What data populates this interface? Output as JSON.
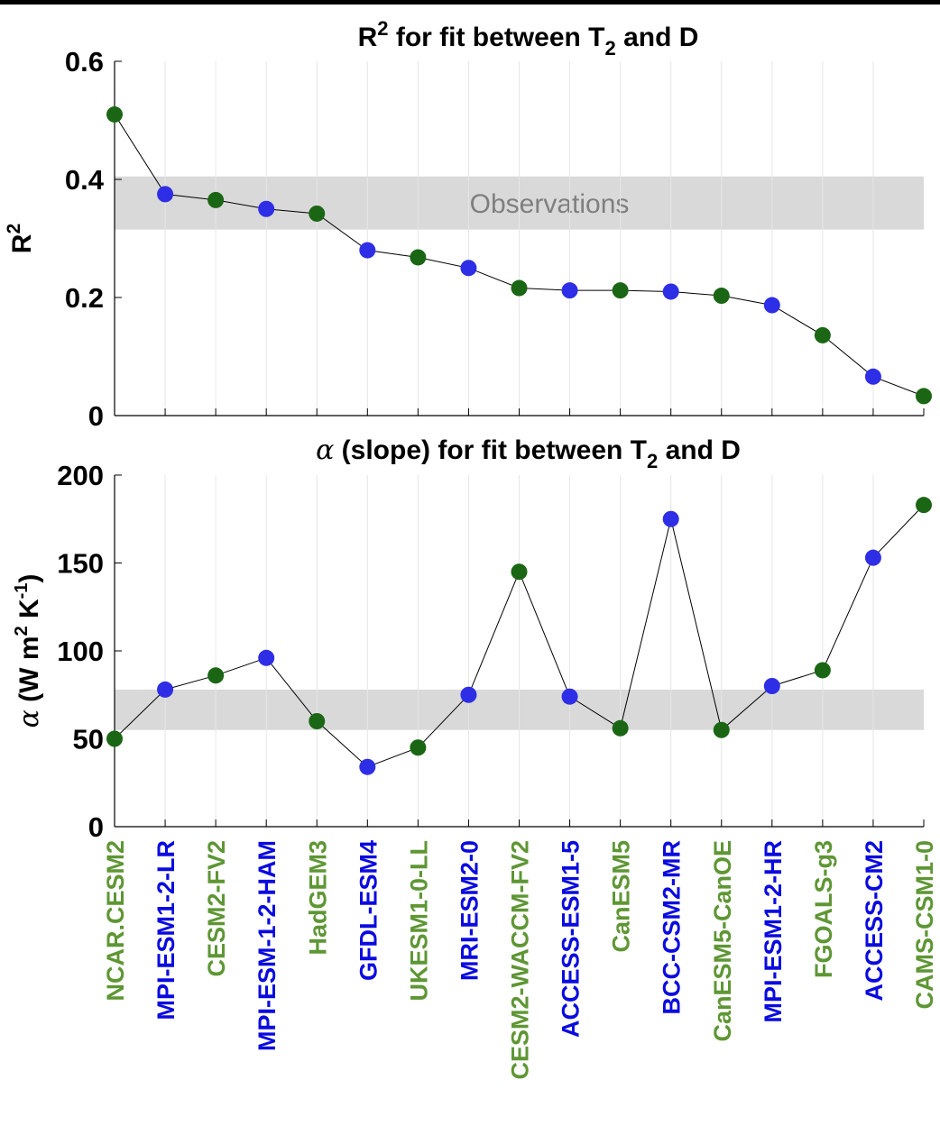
{
  "chart_data": [
    {
      "type": "line",
      "title_main": "R",
      "title_sup": "2",
      "title_mid": " for fit between T",
      "title_sub": "2",
      "title_end": " and D",
      "ylabel_main": "R",
      "ylabel_sup": "2",
      "ylim": [
        0,
        0.6
      ],
      "yticks": [
        "0",
        "0.2",
        "0.4",
        "0.6"
      ],
      "ytick_values": [
        0,
        0.2,
        0.4,
        0.6
      ],
      "observation_band": [
        0.315,
        0.405
      ],
      "observation_label": "Observations",
      "values": [
        0.51,
        0.375,
        0.365,
        0.35,
        0.342,
        0.28,
        0.268,
        0.25,
        0.216,
        0.212,
        0.212,
        0.21,
        0.203,
        0.187,
        0.136,
        0.066,
        0.033
      ]
    },
    {
      "type": "line",
      "title_alpha": "α",
      "title_mid": " (slope) for fit between T",
      "title_sub": "2",
      "title_end": " and D",
      "ylabel_alpha": "α",
      "ylabel_a": " (W m",
      "ylabel_sup1": "2",
      "ylabel_b": " K",
      "ylabel_sup2": "-1",
      "ylabel_c": ")",
      "ylim": [
        0,
        200
      ],
      "yticks": [
        "0",
        "50",
        "100",
        "150",
        "200"
      ],
      "ytick_values": [
        0,
        50,
        100,
        150,
        200
      ],
      "observation_band": [
        55,
        78
      ],
      "values": [
        50,
        78,
        86,
        96,
        60,
        34,
        45,
        75,
        145,
        74,
        56,
        175,
        55,
        80,
        89,
        153,
        183
      ]
    }
  ],
  "categories": [
    "NCAR.CESM2",
    "MPI-ESM1-2-LR",
    "CESM2-FV2",
    "MPI-ESM-1-2-HAM",
    "HadGEM3",
    "GFDL-ESM4",
    "UKESM1-0-LL",
    "MRI-ESM2-0",
    "CESM2-WACCM-FV2",
    "ACCESS-ESM1-5",
    "CanESM5",
    "BCC-CSM2-MR",
    "CanESM5-CanOE",
    "MPI-ESM1-2-HR",
    "FGOALS-g3",
    "ACCESS-CM2",
    "CAMS-CSM1-0"
  ],
  "category_groups": [
    "green",
    "blue",
    "green",
    "blue",
    "green",
    "blue",
    "green",
    "blue",
    "green",
    "blue",
    "green",
    "blue",
    "green",
    "blue",
    "green",
    "blue",
    "green"
  ],
  "colors": {
    "green_marker": "#1a6614",
    "blue_marker": "#2e2ee6",
    "green_label": "#5e9634",
    "blue_label": "#0a0ae0",
    "band": "#d9d9d9",
    "band_text": "#7f7f7f",
    "line": "#000000"
  },
  "grid": "vertical"
}
